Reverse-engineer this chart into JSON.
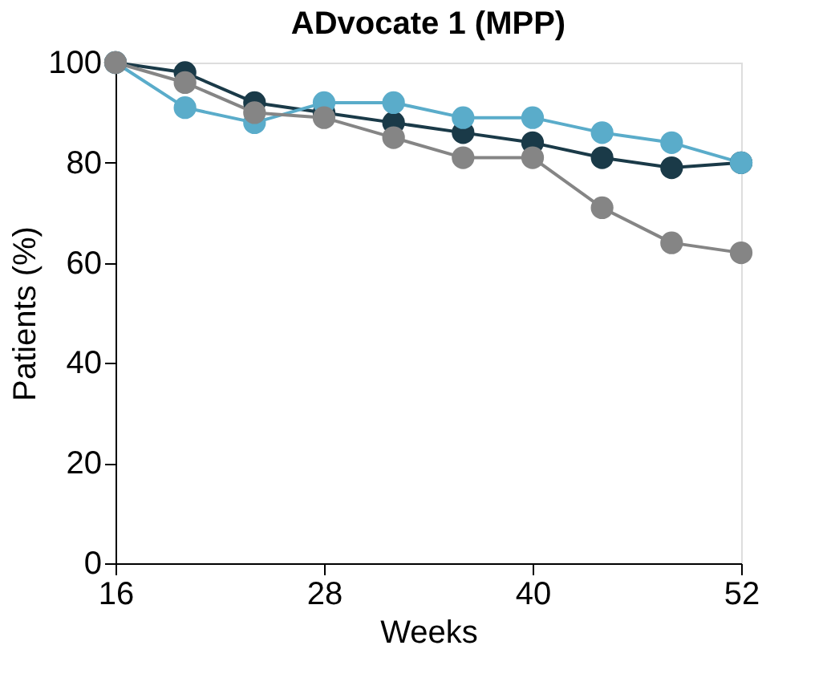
{
  "chart_data": {
    "type": "line",
    "title": "ADvocate 1 (MPP)",
    "xlabel": "Weeks",
    "ylabel": "Patients (%)",
    "x": [
      16,
      20,
      24,
      28,
      32,
      36,
      40,
      44,
      48,
      52
    ],
    "series": [
      {
        "color": "#1a3a48",
        "values": [
          100,
          98,
          92,
          90,
          88,
          86,
          84,
          81,
          79,
          80
        ]
      },
      {
        "color": "#5aacca",
        "values": [
          100,
          91,
          88,
          92,
          92,
          89,
          89,
          86,
          84,
          80
        ]
      },
      {
        "color": "#858585",
        "values": [
          100,
          96,
          90,
          89,
          85,
          81,
          81,
          71,
          64,
          62
        ]
      }
    ],
    "xlim": [
      16,
      52
    ],
    "xticks": [
      16,
      28,
      40,
      52
    ],
    "ylim": [
      0,
      100
    ],
    "yticks": [
      0,
      20,
      40,
      60,
      80,
      100
    ],
    "grid": false,
    "legend": false,
    "marker": "circle",
    "line_style": "solid"
  }
}
